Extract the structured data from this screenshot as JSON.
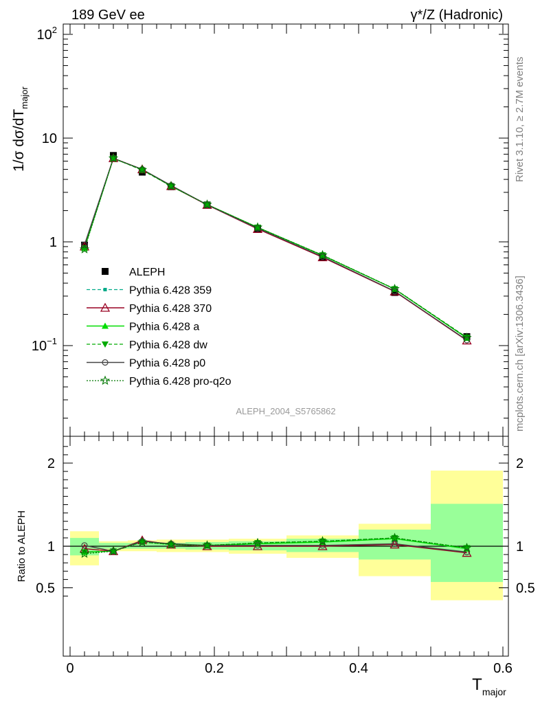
{
  "header": {
    "left_title": "189 GeV ee",
    "right_title": "γ*/Z (Hadronic)"
  },
  "side_labels": {
    "rivet": "Rivet 3.1.10, ≥ 2.7M events",
    "mcplots": "mcplots.cern.ch [arXiv:1306.3436]"
  },
  "watermark": "ALEPH_2004_S5765862",
  "colors": {
    "band_yellow": "#ffff99",
    "band_green": "#99ff99",
    "data": "#000000",
    "p359": "#00aa88",
    "p370": "#990022",
    "pa": "#00dd00",
    "pdw": "#00aa00",
    "pp0": "#444444",
    "pq2o": "#007700"
  },
  "chart_data": [
    {
      "type": "line",
      "scale": "log",
      "ylabel": "1/σ dσ/dT_major",
      "ylim": [
        0.012,
        130
      ],
      "xlim": [
        -0.01,
        0.6
      ],
      "y_tick_labels": [
        "10^-1",
        "1",
        "10",
        "10^2"
      ],
      "legend_position": "lower-left",
      "x": [
        0.02,
        0.06,
        0.1,
        0.14,
        0.19,
        0.26,
        0.35,
        0.45,
        0.55
      ],
      "bin_edges": [
        0.0,
        0.04,
        0.08,
        0.12,
        0.16,
        0.22,
        0.3,
        0.4,
        0.5,
        0.6
      ],
      "series": [
        {
          "name": "ALEPH",
          "key": "data",
          "values": [
            0.93,
            6.8,
            4.7,
            3.4,
            2.27,
            1.34,
            0.71,
            0.325,
            0.122
          ]
        },
        {
          "name": "Pythia 6.428 359",
          "key": "p359",
          "values": [
            0.87,
            6.35,
            5.0,
            3.45,
            2.28,
            1.37,
            0.74,
            0.35,
            0.118
          ]
        },
        {
          "name": "Pythia 6.428 370",
          "key": "p370",
          "values": [
            0.9,
            6.4,
            5.0,
            3.45,
            2.27,
            1.33,
            0.71,
            0.332,
            0.112
          ]
        },
        {
          "name": "Pythia 6.428 a",
          "key": "pa",
          "values": [
            0.87,
            6.35,
            5.0,
            3.45,
            2.29,
            1.38,
            0.74,
            0.35,
            0.118
          ]
        },
        {
          "name": "Pythia 6.428 dw",
          "key": "pdw",
          "values": [
            0.87,
            6.4,
            4.9,
            3.45,
            2.29,
            1.38,
            0.745,
            0.352,
            0.12
          ]
        },
        {
          "name": "Pythia 6.428 p0",
          "key": "pp0",
          "values": [
            0.94,
            6.4,
            5.0,
            3.5,
            2.28,
            1.35,
            0.72,
            0.335,
            0.113
          ]
        },
        {
          "name": "Pythia 6.428 pro-q2o",
          "key": "pq2o",
          "values": [
            0.85,
            6.4,
            4.95,
            3.45,
            2.29,
            1.38,
            0.745,
            0.352,
            0.119
          ]
        }
      ]
    },
    {
      "type": "line",
      "ylabel": "Ratio to ALEPH",
      "xlabel": "T_major",
      "ylim": [
        0.35,
        2.3
      ],
      "xlim": [
        -0.01,
        0.6
      ],
      "x_tick_labels": [
        "0",
        "0.2",
        "0.4",
        "0.6"
      ],
      "y_tick_labels": [
        "0.5",
        "1",
        "2"
      ],
      "x": [
        0.02,
        0.06,
        0.1,
        0.14,
        0.19,
        0.26,
        0.35,
        0.45,
        0.55
      ],
      "bin_edges": [
        0.0,
        0.04,
        0.08,
        0.12,
        0.16,
        0.22,
        0.3,
        0.4,
        0.5,
        0.6
      ],
      "bands": {
        "yellow": [
          [
            0.77,
            1.18
          ],
          [
            0.94,
            1.06
          ],
          [
            0.94,
            1.07
          ],
          [
            0.93,
            1.08
          ],
          [
            0.93,
            1.08
          ],
          [
            0.91,
            1.09
          ],
          [
            0.86,
            1.13
          ],
          [
            0.64,
            1.27
          ],
          [
            0.35,
            1.91
          ]
        ],
        "green": [
          [
            0.89,
            1.1
          ],
          [
            0.97,
            1.04
          ],
          [
            0.97,
            1.04
          ],
          [
            0.97,
            1.04
          ],
          [
            0.96,
            1.05
          ],
          [
            0.95,
            1.06
          ],
          [
            0.93,
            1.09
          ],
          [
            0.84,
            1.2
          ],
          [
            0.57,
            1.51
          ]
        ]
      },
      "series": [
        {
          "name": "Pythia 6.428 359",
          "key": "p359",
          "values": [
            0.93,
            0.94,
            1.06,
            1.02,
            1.0,
            1.03,
            1.05,
            1.09,
            0.97
          ]
        },
        {
          "name": "Pythia 6.428 370",
          "key": "p370",
          "values": [
            0.97,
            0.94,
            1.07,
            1.02,
            1.0,
            1.0,
            1.0,
            1.02,
            0.92
          ]
        },
        {
          "name": "Pythia 6.428 a",
          "key": "pa",
          "values": [
            0.93,
            0.94,
            1.06,
            1.02,
            1.01,
            1.03,
            1.05,
            1.09,
            0.97
          ]
        },
        {
          "name": "Pythia 6.428 dw",
          "key": "pdw",
          "values": [
            0.93,
            0.94,
            1.05,
            1.02,
            1.01,
            1.04,
            1.06,
            1.1,
            0.98
          ]
        },
        {
          "name": "Pythia 6.428 p0",
          "key": "pp0",
          "values": [
            1.01,
            0.94,
            1.06,
            1.03,
            1.01,
            1.01,
            1.01,
            1.03,
            0.93
          ]
        },
        {
          "name": "Pythia 6.428 pro-q2o",
          "key": "pq2o",
          "values": [
            0.91,
            0.94,
            1.05,
            1.02,
            1.01,
            1.04,
            1.06,
            1.1,
            0.98
          ]
        }
      ]
    }
  ]
}
